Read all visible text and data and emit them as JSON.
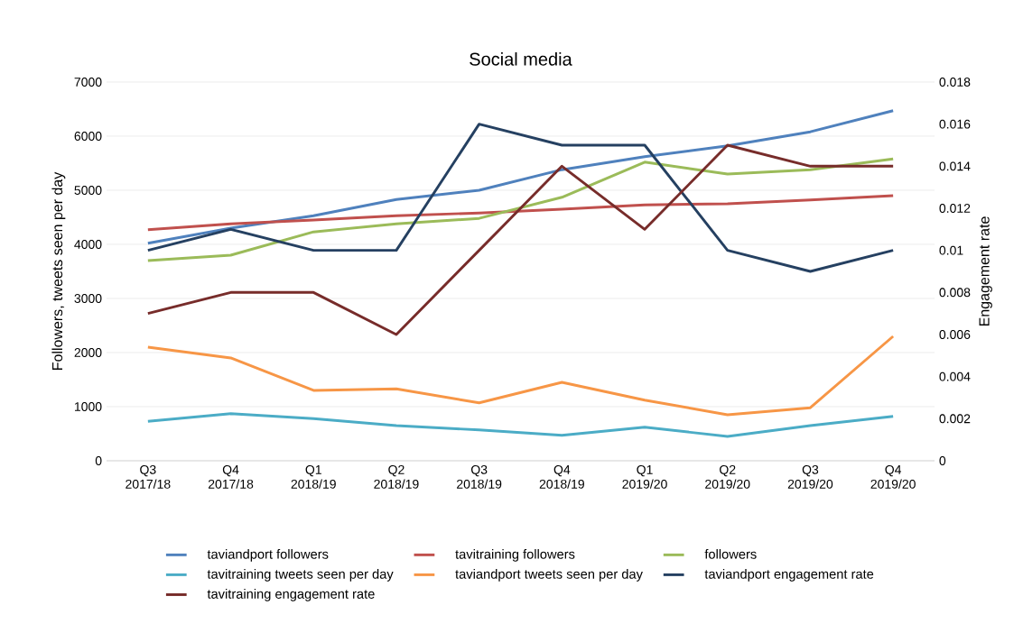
{
  "chart_data": {
    "type": "line",
    "title": "Social media",
    "ylabel": "Followers, tweets seen per day",
    "y2label": "Engagement rate",
    "categories": [
      "Q3 2017/18",
      "Q4 2017/18",
      "Q1 2018/19",
      "Q2 2018/19",
      "Q3 2018/19",
      "Q4 2018/19",
      "Q1 2019/20",
      "Q2 2019/20",
      "Q3 2019/20",
      "Q4 2019/20"
    ],
    "ylim": [
      0,
      7000
    ],
    "yticks": [
      0,
      1000,
      2000,
      3000,
      4000,
      5000,
      6000,
      7000
    ],
    "y2lim": [
      0,
      0.018
    ],
    "y2ticks": [
      0,
      0.002,
      0.004,
      0.006,
      0.008,
      0.01,
      0.012,
      0.014,
      0.016,
      0.018
    ],
    "grid": "y",
    "legend": "bottom",
    "line_style": "solid",
    "series": [
      {
        "name": "taviandport followers",
        "color": "#4f81bd",
        "values": [
          4020,
          4300,
          4530,
          4830,
          5000,
          5380,
          5620,
          5820,
          6080,
          6470
        ]
      },
      {
        "name": "tavitraining followers",
        "color": "#c0504d",
        "values": [
          4270,
          4380,
          4450,
          4530,
          4580,
          4650,
          4730,
          4750,
          4820,
          4900
        ]
      },
      {
        "name": "followers",
        "color": "#9bbb59",
        "values": [
          3700,
          3800,
          4230,
          4380,
          4480,
          4870,
          5520,
          5300,
          5380,
          5580
        ]
      },
      {
        "name": "tavitraining tweets seen per day",
        "color": "#4bacc6",
        "values": [
          730,
          870,
          780,
          650,
          570,
          470,
          620,
          450,
          650,
          820
        ]
      },
      {
        "name": "taviandport tweets seen per day",
        "color": "#f79646",
        "values": [
          2100,
          1900,
          1300,
          1330,
          1070,
          1450,
          1120,
          850,
          980,
          2300
        ]
      },
      {
        "name": "taviandport engagement rate",
        "color": "#254061",
        "axis": "y2",
        "values": [
          0.01,
          0.011,
          0.01,
          0.01,
          0.016,
          0.015,
          0.015,
          0.01,
          0.009,
          0.01
        ]
      },
      {
        "name": "tavitraining engagement rate",
        "color": "#772c2a",
        "axis": "y2",
        "values": [
          0.007,
          0.008,
          0.008,
          0.006,
          0.01,
          0.014,
          0.011,
          0.015,
          0.014,
          0.014
        ]
      }
    ]
  }
}
